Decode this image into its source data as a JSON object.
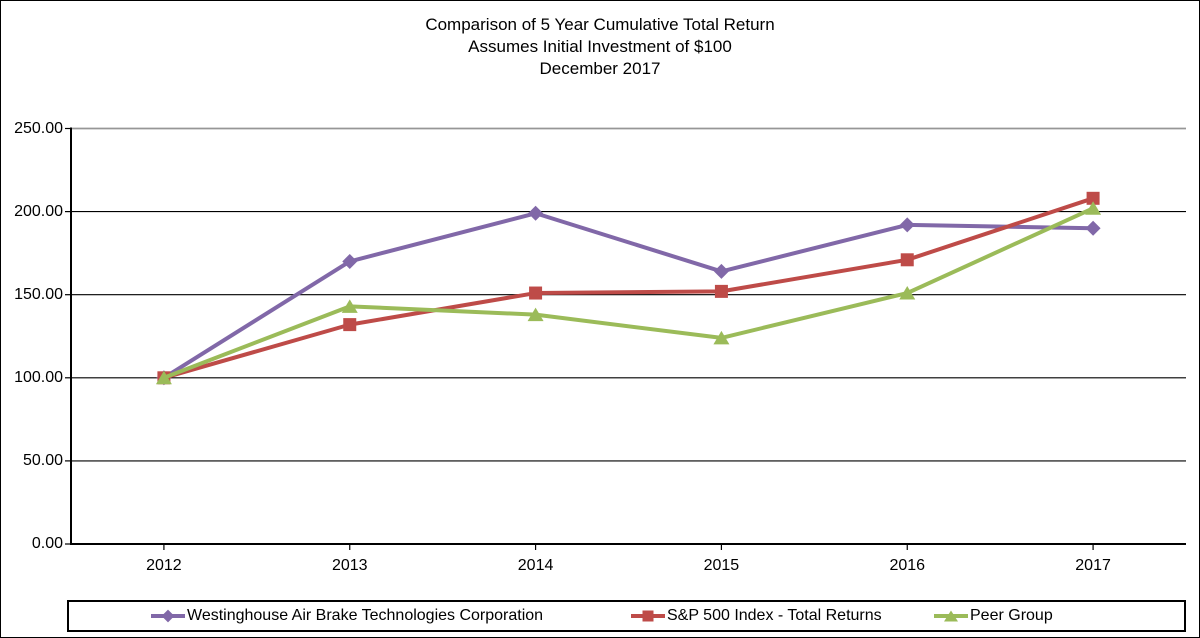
{
  "title": {
    "line1": "Comparison of 5 Year Cumulative  Total Return",
    "line2": "Assumes Initial Investment  of $100",
    "line3": "December 2017"
  },
  "chart_data": {
    "type": "line",
    "categories": [
      "2012",
      "2013",
      "2014",
      "2015",
      "2016",
      "2017"
    ],
    "series": [
      {
        "name": "Westinghouse Air Brake Technologies Corporation",
        "marker": "diamond",
        "color": "#8168A8",
        "values": [
          100,
          170,
          199,
          164,
          192,
          190
        ]
      },
      {
        "name": "S&P 500 Index - Total Returns",
        "marker": "square",
        "color": "#BE4B48",
        "values": [
          100,
          132,
          151,
          152,
          171,
          208
        ]
      },
      {
        "name": "Peer Group",
        "marker": "triangle",
        "color": "#9BBB59",
        "values": [
          100,
          143,
          138,
          124,
          151,
          202
        ]
      }
    ],
    "xlabel": "",
    "ylabel": "",
    "ylim": [
      0,
      250
    ],
    "yticks": [
      0,
      50,
      100,
      150,
      200,
      250
    ],
    "ytick_labels": [
      "0.00",
      "50.00",
      "100.00",
      "150.00",
      "200.00",
      "250.00"
    ],
    "grid": "horizontal",
    "legend_position": "bottom",
    "axis_color": "#000000",
    "top_gridline_color": "#969696"
  }
}
